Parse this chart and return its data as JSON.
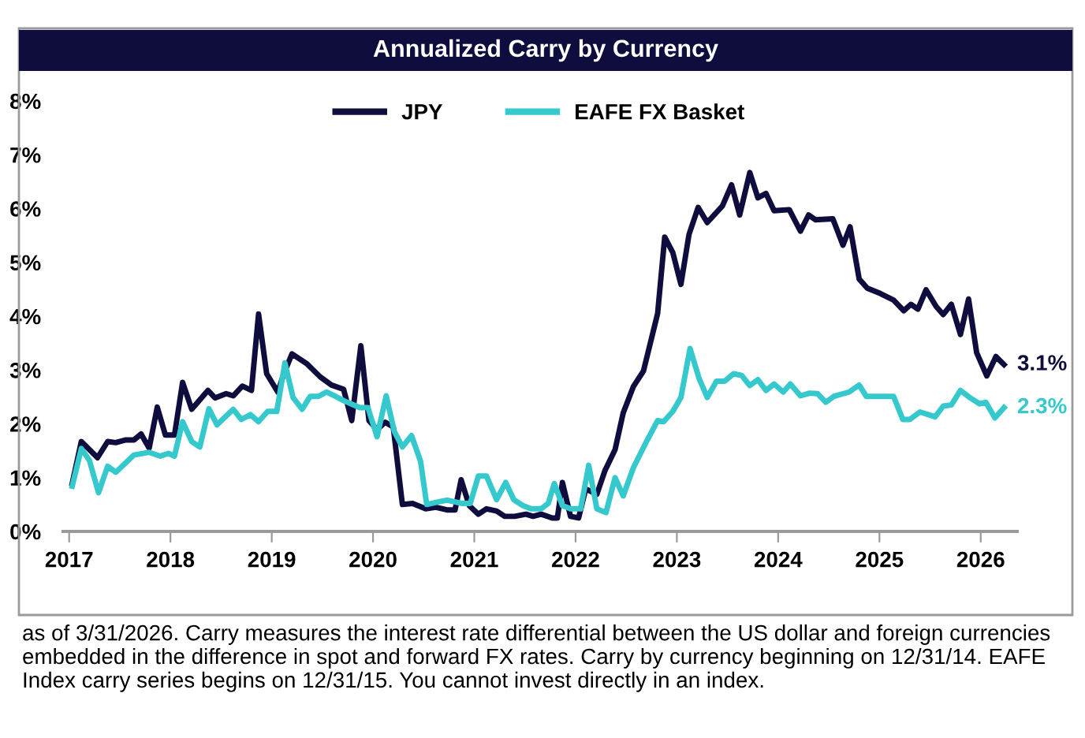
{
  "chart_data": {
    "type": "line",
    "title": "Annualized Carry by Currency",
    "series": [
      {
        "name": "JPY",
        "color": "#0e0d3d",
        "x": [
          2017.03,
          2017.12,
          2017.28,
          2017.38,
          2017.46,
          2017.56,
          2017.64,
          2017.71,
          2017.79,
          2017.87,
          2017.95,
          2018.04,
          2018.12,
          2018.21,
          2018.37,
          2018.44,
          2018.55,
          2018.62,
          2018.71,
          2018.8,
          2018.87,
          2018.95,
          2019.06,
          2019.12,
          2019.2,
          2019.35,
          2019.48,
          2019.59,
          2019.71,
          2019.79,
          2019.88,
          2019.96,
          2020.04,
          2020.12,
          2020.2,
          2020.29,
          2020.39,
          2020.52,
          2020.62,
          2020.73,
          2020.81,
          2020.87,
          2020.95,
          2021.04,
          2021.12,
          2021.22,
          2021.3,
          2021.4,
          2021.51,
          2021.58,
          2021.66,
          2021.77,
          2021.82,
          2021.87,
          2021.95,
          2022.03,
          2022.1,
          2022.21,
          2022.29,
          2022.39,
          2022.47,
          2022.57,
          2022.67,
          2022.81,
          2022.88,
          2022.96,
          2023.04,
          2023.12,
          2023.21,
          2023.3,
          2023.45,
          2023.54,
          2023.62,
          2023.72,
          2023.8,
          2023.88,
          2023.96,
          2024.11,
          2024.22,
          2024.3,
          2024.37,
          2024.54,
          2024.64,
          2024.71,
          2024.8,
          2024.88,
          2025.01,
          2025.14,
          2025.24,
          2025.31,
          2025.38,
          2025.46,
          2025.56,
          2025.63,
          2025.71,
          2025.8,
          2025.88,
          2025.96,
          2026.06,
          2026.15,
          2026.23
        ],
        "values": [
          0.89,
          1.67,
          1.37,
          1.67,
          1.65,
          1.7,
          1.7,
          1.81,
          1.55,
          2.31,
          1.79,
          1.79,
          2.77,
          2.27,
          2.62,
          2.48,
          2.56,
          2.52,
          2.7,
          2.62,
          4.04,
          2.93,
          2.59,
          2.93,
          3.3,
          3.11,
          2.87,
          2.72,
          2.64,
          2.06,
          3.45,
          2.06,
          1.89,
          2.03,
          1.94,
          0.5,
          0.52,
          0.42,
          0.45,
          0.4,
          0.4,
          0.96,
          0.48,
          0.32,
          0.42,
          0.38,
          0.28,
          0.28,
          0.32,
          0.28,
          0.32,
          0.25,
          0.25,
          0.91,
          0.28,
          0.25,
          0.79,
          0.69,
          1.13,
          1.52,
          2.2,
          2.69,
          2.98,
          4.05,
          5.47,
          5.18,
          4.59,
          5.52,
          6.02,
          5.74,
          6.05,
          6.44,
          5.88,
          6.67,
          6.2,
          6.28,
          5.96,
          5.98,
          5.58,
          5.88,
          5.79,
          5.81,
          5.32,
          5.66,
          4.69,
          4.52,
          4.42,
          4.3,
          4.1,
          4.22,
          4.13,
          4.49,
          4.18,
          4.03,
          4.22,
          3.66,
          4.32,
          3.32,
          2.89,
          3.25,
          3.1
        ]
      },
      {
        "name": "EAFE FX Basket",
        "color": "#35c8cc",
        "x": [
          2017.03,
          2017.12,
          2017.2,
          2017.29,
          2017.38,
          2017.46,
          2017.64,
          2017.79,
          2017.9,
          2017.98,
          2018.04,
          2018.12,
          2018.21,
          2018.29,
          2018.38,
          2018.46,
          2018.62,
          2018.7,
          2018.79,
          2018.87,
          2018.96,
          2019.05,
          2019.13,
          2019.21,
          2019.3,
          2019.38,
          2019.46,
          2019.54,
          2019.63,
          2019.71,
          2019.87,
          2019.95,
          2020.04,
          2020.13,
          2020.21,
          2020.29,
          2020.38,
          2020.47,
          2020.53,
          2020.65,
          2020.73,
          2020.88,
          2020.96,
          2021.04,
          2021.12,
          2021.22,
          2021.31,
          2021.39,
          2021.48,
          2021.56,
          2021.66,
          2021.73,
          2021.79,
          2021.87,
          2021.95,
          2022.05,
          2022.13,
          2022.21,
          2022.3,
          2022.39,
          2022.47,
          2022.57,
          2022.7,
          2022.81,
          2022.87,
          2022.96,
          2023.04,
          2023.13,
          2023.22,
          2023.3,
          2023.39,
          2023.47,
          2023.56,
          2023.64,
          2023.72,
          2023.8,
          2023.88,
          2023.96,
          2024.05,
          2024.12,
          2024.22,
          2024.31,
          2024.39,
          2024.47,
          2024.55,
          2024.7,
          2024.8,
          2024.87,
          2025.14,
          2025.23,
          2025.3,
          2025.4,
          2025.55,
          2025.63,
          2025.71,
          2025.8,
          2025.89,
          2025.99,
          2026.05,
          2026.14,
          2026.23
        ],
        "values": [
          0.84,
          1.54,
          1.32,
          0.72,
          1.21,
          1.1,
          1.42,
          1.47,
          1.4,
          1.45,
          1.4,
          2.04,
          1.67,
          1.57,
          2.28,
          1.98,
          2.27,
          2.08,
          2.17,
          2.04,
          2.23,
          2.23,
          3.13,
          2.49,
          2.27,
          2.51,
          2.51,
          2.59,
          2.51,
          2.43,
          2.3,
          2.3,
          1.76,
          2.52,
          1.86,
          1.57,
          1.78,
          1.3,
          0.5,
          0.55,
          0.58,
          0.52,
          0.52,
          1.03,
          1.03,
          0.59,
          0.91,
          0.59,
          0.48,
          0.42,
          0.42,
          0.52,
          0.89,
          0.48,
          0.42,
          0.42,
          1.23,
          0.42,
          0.35,
          1.0,
          0.66,
          1.18,
          1.67,
          2.06,
          2.04,
          2.23,
          2.49,
          3.4,
          2.84,
          2.49,
          2.79,
          2.79,
          2.93,
          2.9,
          2.71,
          2.82,
          2.62,
          2.74,
          2.59,
          2.74,
          2.52,
          2.57,
          2.56,
          2.4,
          2.51,
          2.59,
          2.72,
          2.51,
          2.51,
          2.08,
          2.08,
          2.22,
          2.13,
          2.33,
          2.35,
          2.62,
          2.49,
          2.37,
          2.4,
          2.11,
          2.3
        ]
      }
    ],
    "xlim": [
      2016.94,
      2026.36
    ],
    "xticks": [
      2017,
      2018,
      2019,
      2020,
      2021,
      2022,
      2023,
      2024,
      2025,
      2026
    ],
    "ylim": [
      0,
      8
    ],
    "yticks": [
      {
        "value": 0,
        "label": "0%"
      },
      {
        "value": 1,
        "label": "1%"
      },
      {
        "value": 2,
        "label": "2%"
      },
      {
        "value": 3,
        "label": "3%"
      },
      {
        "value": 4,
        "label": "4%"
      },
      {
        "value": 5,
        "label": "5%"
      },
      {
        "value": 6,
        "label": "6%"
      },
      {
        "value": 7,
        "label": "7%"
      },
      {
        "value": 8,
        "label": "8%"
      }
    ],
    "annotations": [
      {
        "text": "3.1%",
        "x": 2026.23,
        "y": 3.1
      },
      {
        "text": "2.3%",
        "x": 2026.23,
        "y": 2.3
      },
      "as of 3/31/2026. Carry measures the interest rate differential between the US dollar and foreign currencies embedded in the difference in spot and forward FX rates. Carry by currency beginning on 12/31/14. EAFE Index carry series begins on 12/31/15. You cannot invest directly in an index."
    ],
    "legend": "top",
    "grid": false,
    "marker": "none",
    "line_style": "solid"
  }
}
